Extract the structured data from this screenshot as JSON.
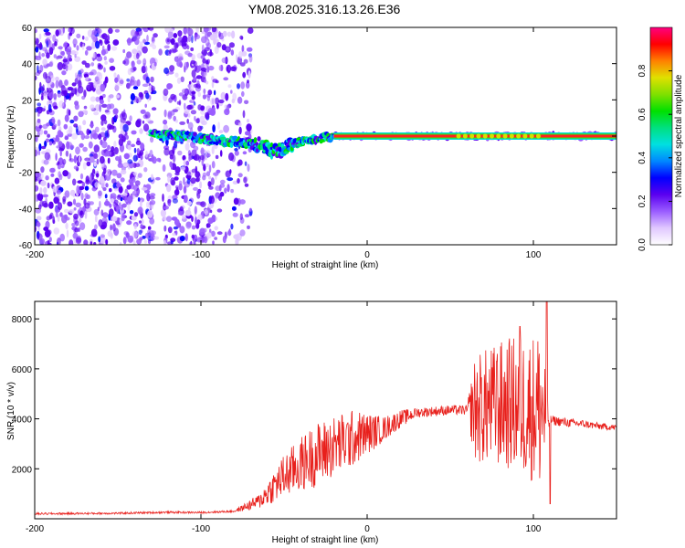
{
  "title": "YM08.2025.316.13.26.E36",
  "chart_data": [
    {
      "type": "heatmap",
      "name": "spectrogram",
      "xlabel": "Height of straight line (km)",
      "ylabel": "Frequency (Hz)",
      "xlim": [
        -200,
        150
      ],
      "ylim": [
        -60,
        60
      ],
      "xticks": [
        -200,
        -100,
        0,
        100
      ],
      "yticks": [
        -60,
        -40,
        -20,
        0,
        20,
        40,
        60
      ],
      "colorbar": {
        "label": "Normalized spectral amplitude",
        "range": [
          0,
          1
        ],
        "ticks": [
          0.0,
          0.2,
          0.4,
          0.6,
          0.8
        ],
        "colors": [
          "#ffffff",
          "#e0c8ff",
          "#9a5cff",
          "#5a00f0",
          "#0000ff",
          "#0088ff",
          "#00e0e0",
          "#00e080",
          "#00e000",
          "#80e000",
          "#e0e000",
          "#ff8000",
          "#ff0000",
          "#ff0080"
        ]
      },
      "features": {
        "noise_region_km": [
          -200,
          -70
        ],
        "signal_track": [
          {
            "x": -130,
            "y": 1
          },
          {
            "x": -110,
            "y": 0
          },
          {
            "x": -95,
            "y": -2
          },
          {
            "x": -80,
            "y": -3
          },
          {
            "x": -65,
            "y": -5
          },
          {
            "x": -55,
            "y": -9
          },
          {
            "x": -45,
            "y": -4
          },
          {
            "x": -35,
            "y": -2
          },
          {
            "x": -20,
            "y": 0
          },
          {
            "x": 0,
            "y": 0
          },
          {
            "x": 50,
            "y": 0
          },
          {
            "x": 100,
            "y": 0
          },
          {
            "x": 150,
            "y": 0
          }
        ],
        "strong_line_start_km": -20
      }
    },
    {
      "type": "line",
      "name": "snr",
      "xlabel": "Height of straight line (km)",
      "ylabel": "SNR (10 * v/v)",
      "xlim": [
        -200,
        150
      ],
      "ylim": [
        0,
        8700
      ],
      "xticks": [
        -200,
        -100,
        0,
        100
      ],
      "yticks": [
        2000,
        4000,
        6000,
        8000
      ],
      "color": "#e8201c",
      "envelope": {
        "x": [
          -200,
          -150,
          -120,
          -100,
          -80,
          -65,
          -50,
          -35,
          -20,
          -5,
          10,
          20,
          30,
          40,
          50,
          60,
          65,
          75,
          85,
          95,
          105,
          110,
          120,
          130,
          140,
          150
        ],
        "y": [
          200,
          220,
          260,
          250,
          300,
          700,
          1700,
          2400,
          2900,
          3300,
          3600,
          4000,
          4250,
          4300,
          4350,
          4350,
          4400,
          4500,
          4600,
          4500,
          4400,
          3950,
          3850,
          3800,
          3700,
          3650
        ]
      },
      "noise_amplitude": {
        "x": [
          -200,
          -80,
          -65,
          -50,
          -30,
          -10,
          10,
          30,
          60,
          65,
          90,
          100,
          105,
          110,
          150
        ],
        "y": [
          40,
          40,
          300,
          900,
          1300,
          1200,
          500,
          200,
          200,
          2200,
          2800,
          3000,
          3500,
          200,
          120
        ]
      },
      "spikes": [
        {
          "x": 108,
          "y": 8700
        },
        {
          "x": 110,
          "y": 600
        },
        {
          "x": 92,
          "y": 7700
        },
        {
          "x": 78,
          "y": 6300
        }
      ]
    }
  ]
}
